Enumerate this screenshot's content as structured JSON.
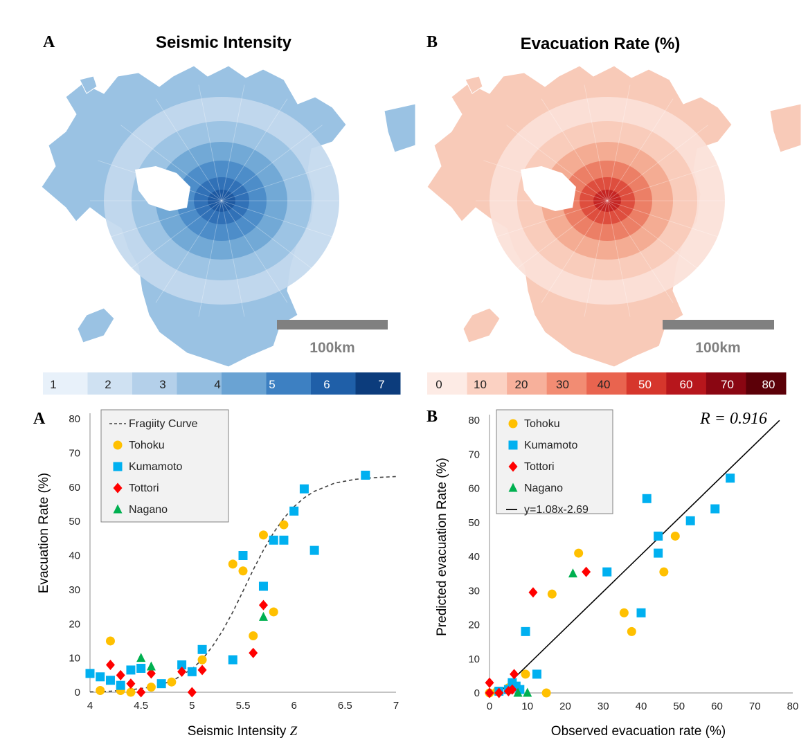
{
  "maps": [
    {
      "panel_letter": "A",
      "title": "Seismic Intensity",
      "scale_label": "100km",
      "colorbar": {
        "ticks": [
          "1",
          "2",
          "3",
          "4",
          "5",
          "6",
          "7"
        ],
        "colors": [
          "#e8f1fa",
          "#cfe1f2",
          "#b4d0ea",
          "#93bde0",
          "#6aa3d3",
          "#3d80c2",
          "#1f5fa8",
          "#0c3c7c"
        ]
      },
      "palette": [
        "#c3d9ee",
        "#9ac2e3",
        "#6fa6d5",
        "#4a8bc8",
        "#2f6fb5",
        "#1b57a0"
      ]
    },
    {
      "panel_letter": "B",
      "title": "Evacuation Rate (%)",
      "scale_label": "100km",
      "colorbar": {
        "ticks": [
          "0",
          "10",
          "20",
          "30",
          "40",
          "50",
          "60",
          "70",
          "80"
        ],
        "colors": [
          "#fdebe5",
          "#fbd1c2",
          "#f7b09b",
          "#f28c73",
          "#e9644f",
          "#d6362c",
          "#b7161c",
          "#8a0612",
          "#5c0008"
        ]
      },
      "palette": [
        "#fbe1d8",
        "#f8cab8",
        "#f3a98f",
        "#ea7b62",
        "#dc4a3b",
        "#c22221"
      ]
    }
  ],
  "chart_data": [
    {
      "type": "scatter",
      "panel_letter": "A",
      "xlabel": "Seismic Intensity Z",
      "ylabel": "Evacuation Rate (%)",
      "xlim": [
        4,
        7
      ],
      "ylim": [
        0,
        80
      ],
      "xticks": [
        "4",
        "4.5",
        "5",
        "5.5",
        "6",
        "6.5",
        "7"
      ],
      "yticks": [
        "0",
        "10",
        "20",
        "30",
        "40",
        "50",
        "60",
        "70",
        "80"
      ],
      "grid": false,
      "legend_position": "top-left",
      "series": [
        {
          "name": "Tohoku",
          "marker": "circle",
          "color": "#ffc000",
          "points": [
            [
              4.1,
              0.5
            ],
            [
              4.2,
              15
            ],
            [
              4.3,
              0.5
            ],
            [
              4.4,
              0
            ],
            [
              4.6,
              1.5
            ],
            [
              4.8,
              3
            ],
            [
              5.1,
              9.5
            ],
            [
              5.4,
              37.5
            ],
            [
              5.5,
              35.5
            ],
            [
              5.6,
              16.5
            ],
            [
              5.7,
              46
            ],
            [
              5.8,
              23.5
            ],
            [
              5.9,
              49
            ]
          ]
        },
        {
          "name": "Kumamoto",
          "marker": "square",
          "color": "#00b0f0",
          "points": [
            [
              4.0,
              5.5
            ],
            [
              4.1,
              4.5
            ],
            [
              4.2,
              3.5
            ],
            [
              4.3,
              2
            ],
            [
              4.4,
              6.5
            ],
            [
              4.5,
              7
            ],
            [
              4.7,
              2.5
            ],
            [
              4.9,
              8
            ],
            [
              5.0,
              6
            ],
            [
              5.1,
              12.5
            ],
            [
              5.4,
              9.5
            ],
            [
              5.5,
              40
            ],
            [
              5.7,
              31
            ],
            [
              5.8,
              44.5
            ],
            [
              5.9,
              44.5
            ],
            [
              6.0,
              53
            ],
            [
              6.1,
              59.5
            ],
            [
              6.2,
              41.5
            ],
            [
              6.7,
              63.5
            ]
          ]
        },
        {
          "name": "Tottori",
          "marker": "diamond",
          "color": "#ff0000",
          "points": [
            [
              4.2,
              8
            ],
            [
              4.3,
              5
            ],
            [
              4.4,
              2.5
            ],
            [
              4.5,
              0
            ],
            [
              4.6,
              5.5
            ],
            [
              4.9,
              6
            ],
            [
              5.0,
              0
            ],
            [
              5.1,
              6.5
            ],
            [
              5.6,
              11.5
            ],
            [
              5.7,
              25.5
            ]
          ]
        },
        {
          "name": "Nagano",
          "marker": "triangle",
          "color": "#00b050",
          "points": [
            [
              4.5,
              10
            ],
            [
              4.6,
              7.5
            ],
            [
              5.7,
              22
            ]
          ]
        }
      ],
      "curve": {
        "name": "Fragiity Curve",
        "style": "dashed",
        "color": "#404040",
        "x": [
          4.0,
          4.2,
          4.4,
          4.6,
          4.8,
          5.0,
          5.1,
          5.2,
          5.3,
          5.4,
          5.5,
          5.6,
          5.7,
          5.8,
          5.9,
          6.0,
          6.1,
          6.2,
          6.4,
          6.6,
          6.8,
          7.0
        ],
        "y": [
          0.1,
          0.3,
          0.7,
          1.5,
          3.2,
          6.8,
          9.6,
          13.4,
          18,
          23.5,
          29.6,
          35.8,
          41.6,
          46.7,
          50.9,
          54.3,
          56.9,
          58.8,
          61.2,
          62.3,
          62.8,
          63.1
        ]
      }
    },
    {
      "type": "scatter",
      "panel_letter": "B",
      "xlabel": "Observed evacuation rate (%)",
      "ylabel": "Predicted evacuation Rate (%)",
      "xlim": [
        0,
        80
      ],
      "ylim": [
        0,
        80
      ],
      "xticks": [
        "0",
        "10",
        "20",
        "30",
        "40",
        "50",
        "60",
        "70",
        "80"
      ],
      "yticks": [
        "0",
        "10",
        "20",
        "30",
        "40",
        "50",
        "60",
        "70",
        "80"
      ],
      "grid": false,
      "legend_position": "top-left",
      "annotation": "R = 0.916",
      "series": [
        {
          "name": "Tohoku",
          "marker": "circle",
          "color": "#ffc000",
          "points": [
            [
              0,
              0
            ],
            [
              2,
              0.5
            ],
            [
              5,
              1.5
            ],
            [
              9.5,
              5.5
            ],
            [
              15,
              0
            ],
            [
              16.5,
              29
            ],
            [
              23.5,
              41
            ],
            [
              35.5,
              23.5
            ],
            [
              37.5,
              18
            ],
            [
              46,
              35.5
            ],
            [
              49,
              46
            ]
          ]
        },
        {
          "name": "Kumamoto",
          "marker": "square",
          "color": "#00b0f0",
          "points": [
            [
              2.5,
              0.5
            ],
            [
              5,
              1
            ],
            [
              6,
              3
            ],
            [
              7,
              2
            ],
            [
              8,
              1
            ],
            [
              9.5,
              18
            ],
            [
              12.5,
              5.5
            ],
            [
              31,
              35.5
            ],
            [
              40,
              23.5
            ],
            [
              41.5,
              57
            ],
            [
              44.5,
              46
            ],
            [
              44.5,
              41
            ],
            [
              53,
              50.5
            ],
            [
              59.5,
              54
            ],
            [
              63.5,
              63
            ]
          ]
        },
        {
          "name": "Tottori",
          "marker": "diamond",
          "color": "#ff0000",
          "points": [
            [
              0,
              3
            ],
            [
              0,
              0
            ],
            [
              2.5,
              0
            ],
            [
              5,
              0.5
            ],
            [
              6,
              1
            ],
            [
              6.5,
              5.5
            ],
            [
              11.5,
              29.5
            ],
            [
              25.5,
              35.5
            ]
          ]
        },
        {
          "name": "Nagano",
          "marker": "triangle",
          "color": "#00b050",
          "points": [
            [
              7.5,
              0
            ],
            [
              10,
              0
            ],
            [
              22,
              35
            ]
          ]
        }
      ],
      "fit_line": {
        "name": "y=1.08x-2.69",
        "slope": 1.08,
        "intercept": -2.69,
        "x_from": 2.5,
        "x_to": 76.5,
        "color": "#000000"
      }
    }
  ]
}
